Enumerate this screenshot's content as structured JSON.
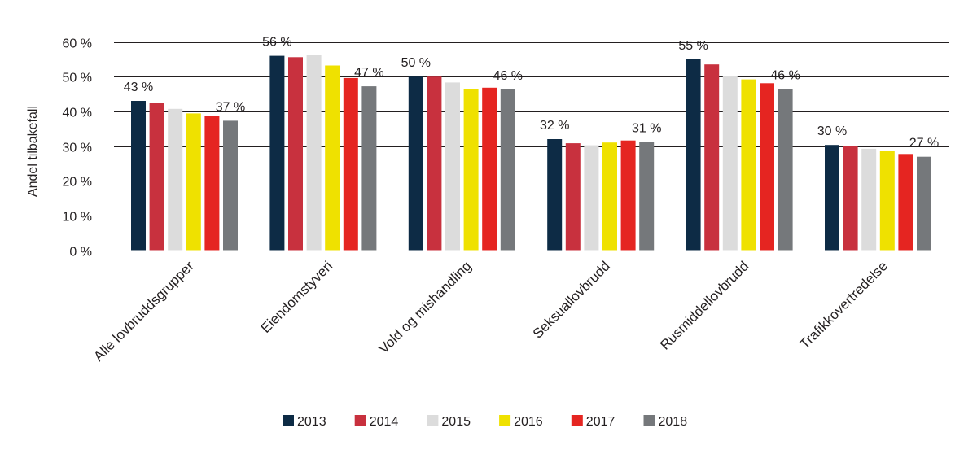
{
  "chart_data": {
    "type": "bar",
    "title": "",
    "xlabel": "",
    "ylabel": "Andel tilbakefall",
    "ylim": [
      0,
      60
    ],
    "yticks": [
      0,
      10,
      20,
      30,
      40,
      50,
      60
    ],
    "ytick_labels": [
      "0 %",
      "10 %",
      "20 %",
      "30 %",
      "40 %",
      "50 %",
      "60 %"
    ],
    "grid": true,
    "legend_position": "bottom",
    "categories": [
      "Alle lovbruddsgrupper",
      "Eiendomstyveri",
      "Vold og mishandling",
      "Seksuallovbrudd",
      "Rusmiddellovbrudd",
      "Trafikkovertredelse"
    ],
    "series": [
      {
        "name": "2013",
        "color": "#0d2b45",
        "values": [
          43,
          56,
          50,
          32,
          55,
          30.3
        ]
      },
      {
        "name": "2014",
        "color": "#c8313e",
        "values": [
          42.3,
          55.6,
          50,
          30.8,
          53.5,
          29.9
        ]
      },
      {
        "name": "2015",
        "color": "#dcdcdc",
        "values": [
          40.7,
          56.3,
          48.3,
          30.2,
          50.2,
          29.2
        ]
      },
      {
        "name": "2016",
        "color": "#efe100",
        "values": [
          39.4,
          53.2,
          46.5,
          31,
          49.2,
          28.7
        ]
      },
      {
        "name": "2017",
        "color": "#e52521",
        "values": [
          38.7,
          49.6,
          46.8,
          31.6,
          48.1,
          27.7
        ]
      },
      {
        "name": "2018",
        "color": "#75787b",
        "values": [
          37.3,
          47.2,
          46.3,
          31.2,
          46.4,
          26.9
        ]
      }
    ],
    "annotations": [
      {
        "category": "Alle lovbruddsgrupper",
        "series": "2013",
        "text": "43 %"
      },
      {
        "category": "Alle lovbruddsgrupper",
        "series": "2018",
        "text": "37 %"
      },
      {
        "category": "Eiendomstyveri",
        "series": "2013",
        "text": "56 %"
      },
      {
        "category": "Eiendomstyveri",
        "series": "2018",
        "text": "47 %"
      },
      {
        "category": "Vold og mishandling",
        "series": "2013",
        "text": "50 %"
      },
      {
        "category": "Vold og mishandling",
        "series": "2018",
        "text": "46 %"
      },
      {
        "category": "Seksuallovbrudd",
        "series": "2013",
        "text": "32 %"
      },
      {
        "category": "Seksuallovbrudd",
        "series": "2018",
        "text": "31 %"
      },
      {
        "category": "Rusmiddellovbrudd",
        "series": "2013",
        "text": "55 %"
      },
      {
        "category": "Rusmiddellovbrudd",
        "series": "2018",
        "text": "46 %"
      },
      {
        "category": "Trafikkovertredelse",
        "series": "2013",
        "text": "30 %"
      },
      {
        "category": "Trafikkovertredelse",
        "series": "2018",
        "text": "27 %"
      }
    ]
  }
}
